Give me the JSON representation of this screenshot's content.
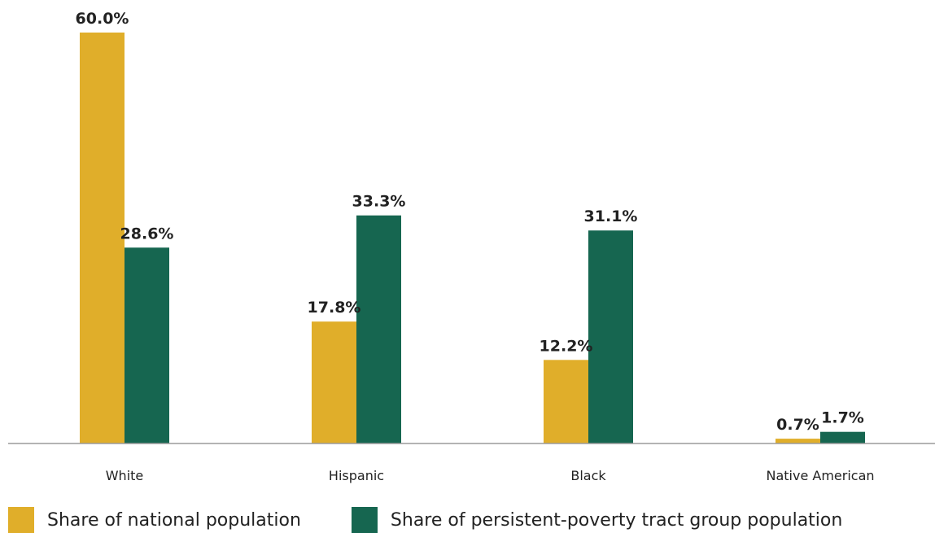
{
  "chart_data": {
    "type": "bar",
    "title": "",
    "xlabel": "",
    "ylabel": "",
    "ylim": [
      0,
      60
    ],
    "grid": false,
    "legend_position": "bottom-left",
    "categories": [
      "White",
      "Hispanic",
      "Black",
      "Native American"
    ],
    "series": [
      {
        "name": "Share of national population",
        "values": [
          60.0,
          17.8,
          12.2,
          0.7
        ],
        "labels": [
          "60.0%",
          "17.8%",
          "12.2%",
          "0.7%"
        ],
        "color": "#E0AE2A"
      },
      {
        "name": "Share of persistent-poverty tract group population",
        "values": [
          28.6,
          33.3,
          31.1,
          1.7
        ],
        "labels": [
          "28.6%",
          "33.3%",
          "31.1%",
          "1.7%"
        ],
        "color": "#166650"
      }
    ]
  }
}
